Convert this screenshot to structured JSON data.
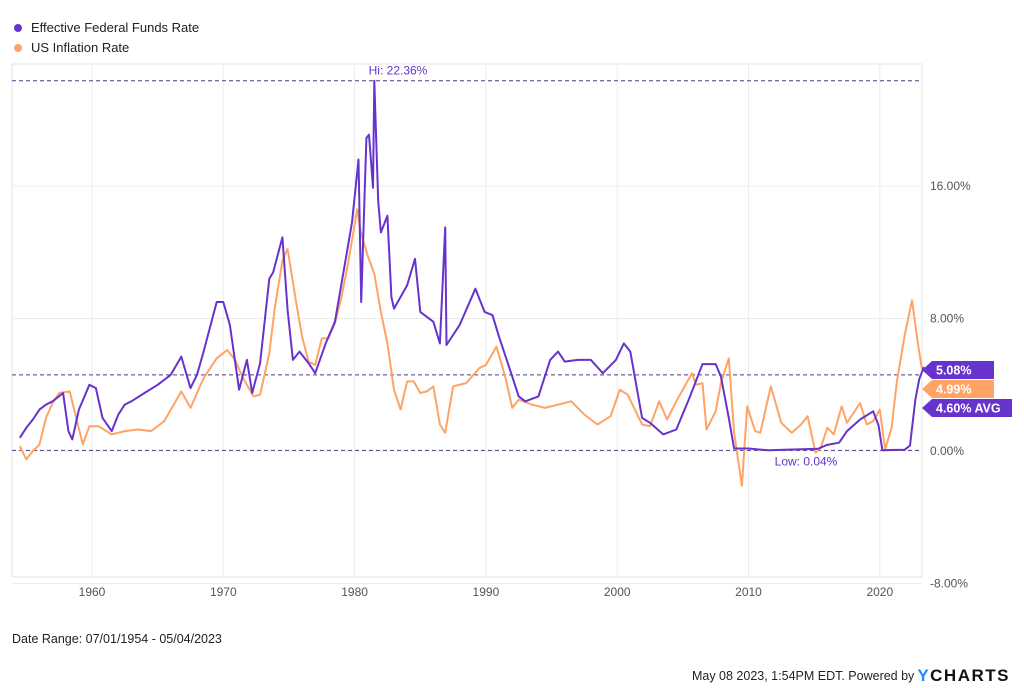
{
  "chart_data": {
    "type": "line",
    "title": "",
    "xlabel": "",
    "ylabel": "",
    "x_ticks": [
      "1960",
      "1970",
      "1980",
      "1990",
      "2000",
      "2010",
      "2020"
    ],
    "y_ticks": [
      "-8.00%",
      "0.00%",
      "8.00%",
      "16.00%"
    ],
    "y_tick_values": [
      -8,
      0,
      8,
      16
    ],
    "xlim": [
      1954.5,
      2023.35
    ],
    "ylim": [
      -8,
      23
    ],
    "grid": true,
    "axis_side": "right",
    "legend_position": "top-left",
    "series": [
      {
        "name": "Effective Federal Funds Rate",
        "color": "#6633cc",
        "end_label": "5.08%",
        "x": [
          1954.5,
          1955,
          1955.5,
          1956,
          1956.5,
          1957,
          1957.8,
          1958.2,
          1958.5,
          1959,
          1959.8,
          1960.3,
          1960.8,
          1961.5,
          1962,
          1962.5,
          1963,
          1964,
          1965,
          1966,
          1966.8,
          1967.5,
          1968,
          1968.5,
          1969.5,
          1970,
          1970.5,
          1971.2,
          1971.8,
          1972.2,
          1972.8,
          1973.5,
          1973.8,
          1974.5,
          1974.9,
          1975.3,
          1975.8,
          1976.5,
          1977,
          1977.8,
          1978.5,
          1979,
          1979.8,
          1980.3,
          1980.5,
          1980.9,
          1981.1,
          1981.4,
          1981.5,
          1981.8,
          1982,
          1982.5,
          1982.8,
          1983,
          1984,
          1984.6,
          1985,
          1986,
          1986.5,
          1986.9,
          1987,
          1988,
          1989.2,
          1989.9,
          1990.5,
          1991,
          1991.8,
          1992.5,
          1993,
          1994,
          1994.9,
          1995.5,
          1996,
          1997,
          1998,
          1998.9,
          1999.9,
          2000.5,
          2001,
          2001.9,
          2002.5,
          2003.5,
          2004.5,
          2005.5,
          2006.5,
          2007.5,
          2007.9,
          2008.5,
          2008.9,
          2010,
          2011.5,
          2014,
          2015.3,
          2015.95,
          2016.9,
          2017.5,
          2018.5,
          2019.5,
          2019.9,
          2020.2,
          2021.9,
          2022.3,
          2022.7,
          2023,
          2023.35
        ],
        "y": [
          0.8,
          1.4,
          1.9,
          2.5,
          2.8,
          3.0,
          3.5,
          1.2,
          0.7,
          2.5,
          4.0,
          3.8,
          2.0,
          1.2,
          2.2,
          2.8,
          3.0,
          3.5,
          4.0,
          4.6,
          5.7,
          3.8,
          4.6,
          6.0,
          9.0,
          9.0,
          7.6,
          3.7,
          5.5,
          3.5,
          5.3,
          10.4,
          10.8,
          12.9,
          8.5,
          5.5,
          6.0,
          5.3,
          4.7,
          6.5,
          7.8,
          10.1,
          13.8,
          17.6,
          9.0,
          18.9,
          19.1,
          15.9,
          22.36,
          15.1,
          13.2,
          14.2,
          9.3,
          8.6,
          10.0,
          11.6,
          8.4,
          7.8,
          6.5,
          13.5,
          6.4,
          7.6,
          9.8,
          8.4,
          8.2,
          6.9,
          5.0,
          3.3,
          3.0,
          3.3,
          5.5,
          6.0,
          5.4,
          5.5,
          5.5,
          4.7,
          5.5,
          6.5,
          6.0,
          2.0,
          1.7,
          1.0,
          1.3,
          3.2,
          5.25,
          5.25,
          4.5,
          2.0,
          0.15,
          0.15,
          0.04,
          0.1,
          0.13,
          0.36,
          0.5,
          1.2,
          1.9,
          2.4,
          1.55,
          0.05,
          0.08,
          0.33,
          3.08,
          4.33,
          5.08
        ]
      },
      {
        "name": "US Inflation Rate",
        "color": "#ffa366",
        "end_label": "4.99%",
        "x": [
          1954.5,
          1955,
          1955.5,
          1956,
          1956.5,
          1957,
          1957.5,
          1958.3,
          1958.8,
          1959.3,
          1959.8,
          1960.5,
          1961.5,
          1962.5,
          1963.5,
          1964.5,
          1965.5,
          1966.8,
          1967.5,
          1968.5,
          1969.5,
          1970.3,
          1970.9,
          1971.5,
          1972.3,
          1972.8,
          1973.5,
          1973.9,
          1974.5,
          1974.9,
          1975.5,
          1976,
          1976.5,
          1977,
          1977.5,
          1978,
          1978.5,
          1979,
          1979.5,
          1980.2,
          1980.5,
          1981,
          1981.5,
          1982,
          1982.5,
          1983,
          1983.5,
          1984,
          1984.5,
          1985,
          1985.5,
          1986,
          1986.5,
          1986.9,
          1987.5,
          1988.5,
          1989.5,
          1990,
          1990.8,
          1991.5,
          1992,
          1992.5,
          1993.5,
          1994.5,
          1995.5,
          1996.5,
          1997.5,
          1998.5,
          1999.5,
          2000.2,
          2000.8,
          2001.9,
          2002.5,
          2003.2,
          2003.8,
          2004.5,
          2005.7,
          2006,
          2006.5,
          2006.8,
          2007.5,
          2007.9,
          2008.5,
          2008.9,
          2009.5,
          2009.9,
          2010.5,
          2010.9,
          2011.7,
          2012.5,
          2013.3,
          2014,
          2014.5,
          2015.1,
          2015.5,
          2016,
          2016.5,
          2017.1,
          2017.5,
          2018.5,
          2019,
          2019.5,
          2020,
          2020.4,
          2020.9,
          2021.3,
          2021.9,
          2022.45,
          2022.9,
          2023.2,
          2023.35
        ],
        "y": [
          0.3,
          -0.5,
          0.0,
          0.4,
          2.0,
          2.9,
          3.5,
          3.6,
          2.0,
          0.4,
          1.5,
          1.5,
          1.0,
          1.2,
          1.3,
          1.2,
          1.8,
          3.6,
          2.6,
          4.4,
          5.6,
          6.1,
          5.5,
          4.4,
          3.3,
          3.4,
          5.9,
          8.5,
          11.5,
          12.2,
          9.2,
          6.9,
          5.4,
          5.2,
          6.8,
          6.8,
          7.7,
          9.3,
          11.3,
          14.6,
          13.1,
          11.8,
          10.7,
          8.4,
          6.5,
          3.7,
          2.5,
          4.2,
          4.2,
          3.5,
          3.6,
          3.9,
          1.6,
          1.1,
          3.9,
          4.1,
          5.0,
          5.2,
          6.3,
          4.4,
          2.6,
          3.1,
          2.8,
          2.6,
          2.8,
          3.0,
          2.2,
          1.6,
          2.1,
          3.7,
          3.4,
          1.6,
          1.5,
          3.0,
          1.9,
          3.0,
          4.7,
          4.0,
          4.1,
          1.3,
          2.4,
          4.1,
          5.6,
          1.1,
          -2.1,
          2.7,
          1.2,
          1.1,
          3.9,
          1.7,
          1.1,
          1.6,
          2.1,
          -0.1,
          0.2,
          1.4,
          1.0,
          2.7,
          1.7,
          2.9,
          1.6,
          1.8,
          2.5,
          0.1,
          1.4,
          4.2,
          7.0,
          9.1,
          6.5,
          5.0,
          4.99
        ]
      }
    ],
    "reference_lines": [
      {
        "label": "Hi: 22.36%",
        "value": 22.36
      },
      {
        "label": "4.60% AVG",
        "value": 4.6
      },
      {
        "label": "Low: 0.04%",
        "value": 0.04
      }
    ]
  },
  "legend": [
    {
      "label": "Effective Federal Funds Rate",
      "color": "#6633cc"
    },
    {
      "label": "US Inflation Rate",
      "color": "#ffa366"
    }
  ],
  "date_range": "Date Range: 07/01/1954 - 05/04/2023",
  "footer": {
    "timestamp": "May 08 2023, 1:54PM EDT. Powered by",
    "brand": "YCHARTS"
  }
}
